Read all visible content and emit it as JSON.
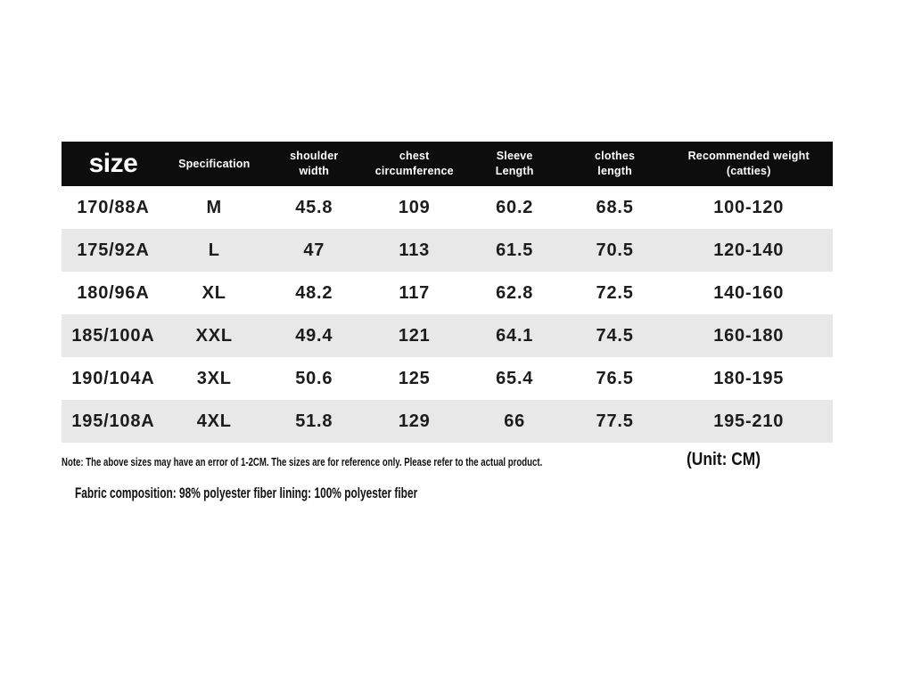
{
  "colors": {
    "page_bg": "#ffffff",
    "header_bg": "#0d0d0d",
    "header_text": "#ffffff",
    "stripe": "#e8e8e8",
    "body_text": "#1c1c1c",
    "note_text": "#111111"
  },
  "chart_data": {
    "type": "table",
    "title": "size",
    "unit": "CM",
    "columns": [
      {
        "key": "size",
        "lines": [
          "size"
        ]
      },
      {
        "key": "specification",
        "lines": [
          "Specification"
        ]
      },
      {
        "key": "shoulder-width",
        "lines": [
          "shoulder",
          "width"
        ]
      },
      {
        "key": "chest-circumference",
        "lines": [
          "chest",
          "circumference"
        ]
      },
      {
        "key": "sleeve-length",
        "lines": [
          "Sleeve",
          "Length"
        ]
      },
      {
        "key": "clothes-length",
        "lines": [
          "clothes",
          "length"
        ]
      },
      {
        "key": "recommended-weight",
        "lines": [
          "Recommended weight",
          "(catties)"
        ]
      }
    ],
    "rows": [
      [
        "170/88A",
        "M",
        "45.8",
        "109",
        "60.2",
        "68.5",
        "100-120"
      ],
      [
        "175/92A",
        "L",
        "47",
        "113",
        "61.5",
        "70.5",
        "120-140"
      ],
      [
        "180/96A",
        "XL",
        "48.2",
        "117",
        "62.8",
        "72.5",
        "140-160"
      ],
      [
        "185/100A",
        "XXL",
        "49.4",
        "121",
        "64.1",
        "74.5",
        "160-180"
      ],
      [
        "190/104A",
        "3XL",
        "50.6",
        "125",
        "65.4",
        "76.5",
        "180-195"
      ],
      [
        "195/108A",
        "4XL",
        "51.8",
        "129",
        "66",
        "77.5",
        "195-210"
      ]
    ]
  },
  "footnotes": {
    "note": "Note: The above sizes may have an error of 1-2CM. The sizes are for reference only. Please refer to the actual product.",
    "unit": "(Unit: CM)",
    "fabric": "Fabric composition: 98% polyester fiber lining: 100% polyester fiber"
  }
}
